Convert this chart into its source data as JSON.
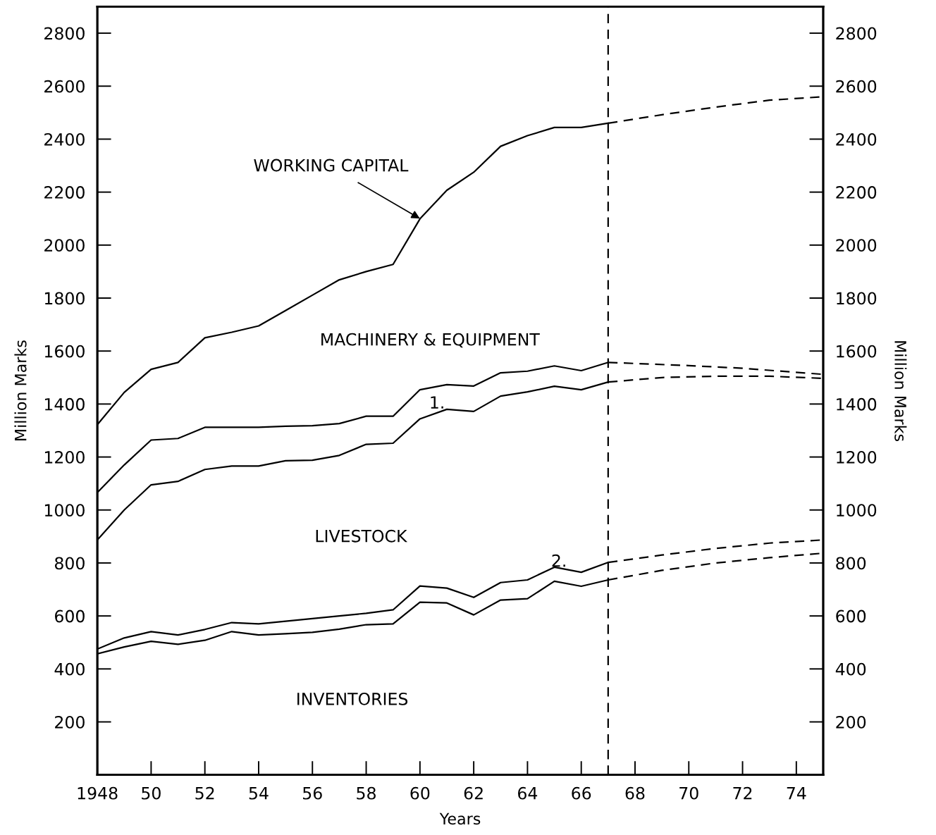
{
  "chart_data": {
    "type": "line",
    "xlabel": "Years",
    "ylabel": "Million Marks",
    "y2label": "Million Marks",
    "xlim": [
      1948,
      1975
    ],
    "xticks": [
      {
        "value": 1948,
        "label": "1948"
      },
      {
        "value": 1950,
        "label": "50"
      },
      {
        "value": 1952,
        "label": "52"
      },
      {
        "value": 1954,
        "label": "54"
      },
      {
        "value": 1956,
        "label": "56"
      },
      {
        "value": 1958,
        "label": "58"
      },
      {
        "value": 1960,
        "label": "60"
      },
      {
        "value": 1962,
        "label": "62"
      },
      {
        "value": 1964,
        "label": "64"
      },
      {
        "value": 1966,
        "label": "66"
      },
      {
        "value": 1968,
        "label": "68"
      },
      {
        "value": 1970,
        "label": "70"
      },
      {
        "value": 1972,
        "label": "72"
      },
      {
        "value": 1974,
        "label": "74"
      }
    ],
    "ylim": [
      0,
      2900
    ],
    "yticks": [
      200,
      400,
      600,
      800,
      1000,
      1200,
      1400,
      1600,
      1800,
      2000,
      2200,
      2400,
      2600,
      2800
    ],
    "y2lim": [
      0,
      2900
    ],
    "y2ticks": [
      200,
      400,
      600,
      800,
      1000,
      1200,
      1400,
      1600,
      1800,
      2000,
      2200,
      2400,
      2600,
      2800
    ],
    "grid": false,
    "legend": false,
    "marker": "none",
    "series": [
      {
        "color": "#000000",
        "line_style": "solid",
        "x": [
          1948,
          1949,
          1950,
          1951,
          1952,
          1953,
          1954,
          1955,
          1956,
          1957,
          1958,
          1959,
          1960,
          1961,
          1962,
          1963,
          1964,
          1965,
          1966,
          1967
        ],
        "values": [
          1322,
          1444,
          1531,
          1557,
          1650,
          1671,
          1695,
          1753,
          1811,
          1869,
          1900,
          1927,
          2099,
          2207,
          2275,
          2373,
          2413,
          2444,
          2444,
          2460
        ]
      },
      {
        "color": "#000000",
        "line_style": "dashed",
        "x": [
          1967,
          1969,
          1971,
          1973,
          1975
        ],
        "values": [
          2460,
          2492,
          2521,
          2547,
          2560
        ]
      },
      {
        "color": "#000000",
        "line_style": "solid",
        "x": [
          1948,
          1949,
          1950,
          1951,
          1952,
          1953,
          1954,
          1955,
          1956,
          1957,
          1958,
          1959,
          1960,
          1961,
          1962,
          1963,
          1964,
          1965,
          1966,
          1967
        ],
        "values": [
          1066,
          1170,
          1264,
          1270,
          1312,
          1312,
          1312,
          1316,
          1318,
          1326,
          1354,
          1354,
          1454,
          1473,
          1468,
          1518,
          1524,
          1544,
          1526,
          1557
        ]
      },
      {
        "color": "#000000",
        "line_style": "dashed",
        "x": [
          1967,
          1970,
          1972,
          1975
        ],
        "values": [
          1557,
          1545,
          1535,
          1512
        ]
      },
      {
        "color": "#000000",
        "line_style": "solid",
        "x": [
          1948,
          1949,
          1950,
          1951,
          1952,
          1953,
          1954,
          1955,
          1956,
          1957,
          1958,
          1959,
          1960,
          1961,
          1962,
          1963,
          1964,
          1965,
          1966,
          1967
        ],
        "values": [
          887,
          1000,
          1095,
          1108,
          1153,
          1166,
          1166,
          1186,
          1188,
          1206,
          1248,
          1252,
          1344,
          1380,
          1372,
          1430,
          1446,
          1467,
          1454,
          1483
        ]
      },
      {
        "color": "#000000",
        "line_style": "dashed",
        "x": [
          1967,
          1969,
          1971,
          1973,
          1975
        ],
        "values": [
          1483,
          1500,
          1505,
          1505,
          1497
        ]
      },
      {
        "color": "#000000",
        "line_style": "solid",
        "x": [
          1948,
          1949,
          1950,
          1951,
          1952,
          1953,
          1954,
          1955,
          1956,
          1957,
          1958,
          1959,
          1960,
          1961,
          1962,
          1963,
          1964,
          1965,
          1966,
          1967
        ],
        "values": [
          475,
          517,
          541,
          528,
          549,
          575,
          570,
          580,
          590,
          600,
          610,
          623,
          713,
          705,
          670,
          726,
          736,
          784,
          765,
          802
        ]
      },
      {
        "color": "#000000",
        "line_style": "dashed",
        "x": [
          1967,
          1969,
          1971,
          1973,
          1975
        ],
        "values": [
          802,
          830,
          855,
          875,
          887
        ]
      },
      {
        "color": "#000000",
        "line_style": "solid",
        "x": [
          1948,
          1949,
          1950,
          1951,
          1952,
          1953,
          1954,
          1955,
          1956,
          1957,
          1958,
          1959,
          1960,
          1961,
          1962,
          1963,
          1964,
          1965,
          1966,
          1967
        ],
        "values": [
          457,
          483,
          504,
          493,
          508,
          541,
          528,
          533,
          538,
          550,
          567,
          570,
          652,
          649,
          604,
          660,
          665,
          731,
          712,
          736
        ]
      },
      {
        "color": "#000000",
        "line_style": "dashed",
        "x": [
          1967,
          1969,
          1971,
          1973,
          1975
        ],
        "values": [
          736,
          772,
          800,
          820,
          837
        ]
      }
    ],
    "ref_lines": [
      {
        "axis": "x",
        "value": 1967,
        "color": "#000000",
        "line_style": "dashed"
      }
    ],
    "annotations": [
      {
        "text": "WORKING CAPITAL",
        "x": 1960,
        "y": 2100
      },
      "MACHINERY & EQUIPMENT",
      "1.",
      "LIVESTOCK",
      "2.",
      "INVENTORIES"
    ]
  }
}
